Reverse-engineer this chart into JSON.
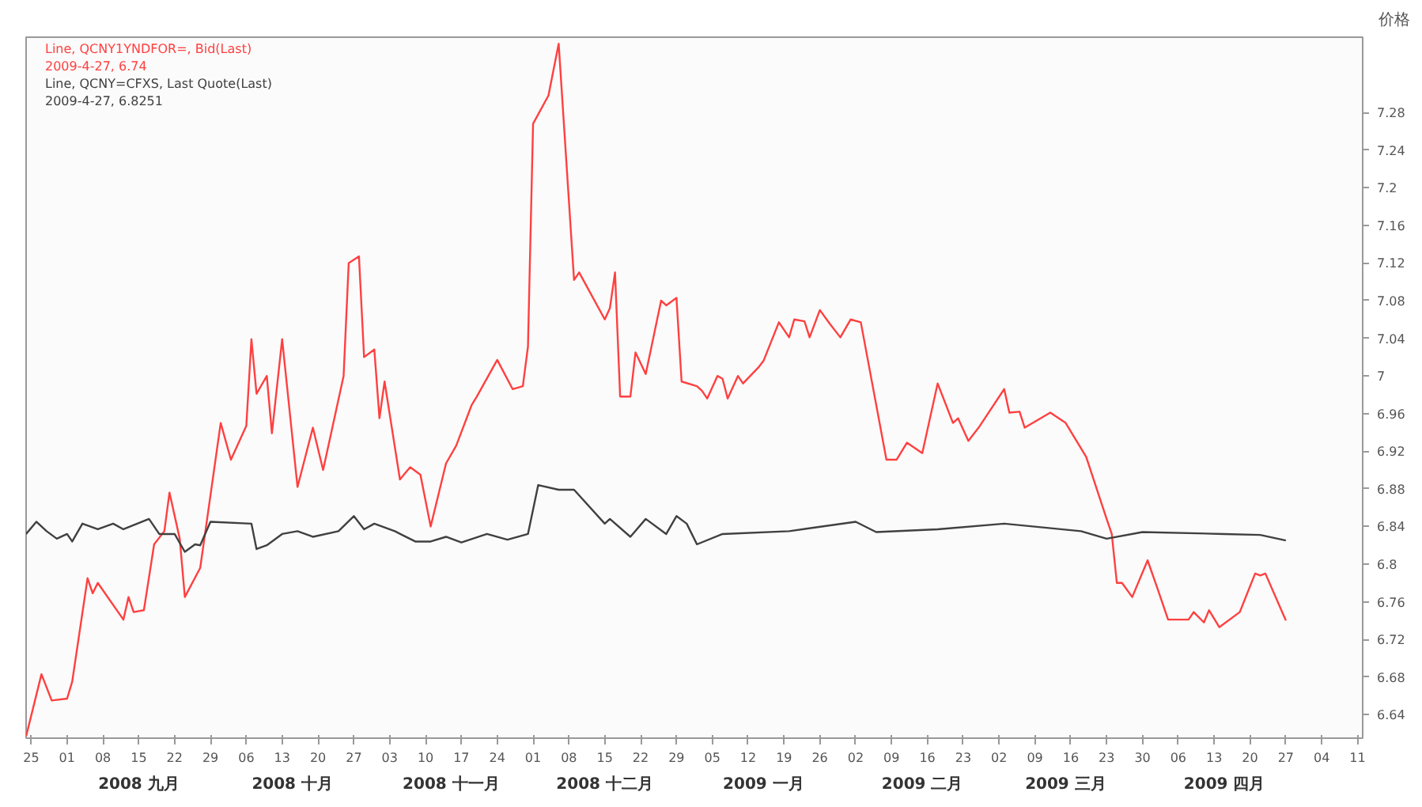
{
  "chart_data": {
    "type": "line",
    "ylabel": "价格",
    "marker": "none",
    "line_style": "solid",
    "grid": false,
    "xlim": [
      "2008-08-24",
      "2009-05-12"
    ],
    "ylim": [
      6.615,
      7.36
    ],
    "yticks": [
      6.64,
      6.68,
      6.72,
      6.76,
      6.8,
      6.84,
      6.88,
      6.92,
      6.96,
      7,
      7.04,
      7.08,
      7.12,
      7.16,
      7.2,
      7.24,
      7.28
    ],
    "xticks": [
      {
        "value": "2008-08-25",
        "label": "25"
      },
      {
        "value": "2008-09-01",
        "label": "01"
      },
      {
        "value": "2008-09-08",
        "label": "08"
      },
      {
        "value": "2008-09-15",
        "label": "15"
      },
      {
        "value": "2008-09-22",
        "label": "22"
      },
      {
        "value": "2008-09-29",
        "label": "29"
      },
      {
        "value": "2008-10-06",
        "label": "06"
      },
      {
        "value": "2008-10-13",
        "label": "13"
      },
      {
        "value": "2008-10-20",
        "label": "20"
      },
      {
        "value": "2008-10-27",
        "label": "27"
      },
      {
        "value": "2008-11-03",
        "label": "03"
      },
      {
        "value": "2008-11-10",
        "label": "10"
      },
      {
        "value": "2008-11-17",
        "label": "17"
      },
      {
        "value": "2008-11-24",
        "label": "24"
      },
      {
        "value": "2008-12-01",
        "label": "01"
      },
      {
        "value": "2008-12-08",
        "label": "08"
      },
      {
        "value": "2008-12-15",
        "label": "15"
      },
      {
        "value": "2008-12-22",
        "label": "22"
      },
      {
        "value": "2008-12-29",
        "label": "29"
      },
      {
        "value": "2009-01-05",
        "label": "05"
      },
      {
        "value": "2009-01-12",
        "label": "12"
      },
      {
        "value": "2009-01-19",
        "label": "19"
      },
      {
        "value": "2009-01-26",
        "label": "26"
      },
      {
        "value": "2009-02-02",
        "label": "02"
      },
      {
        "value": "2009-02-09",
        "label": "09"
      },
      {
        "value": "2009-02-16",
        "label": "16"
      },
      {
        "value": "2009-02-23",
        "label": "23"
      },
      {
        "value": "2009-03-02",
        "label": "02"
      },
      {
        "value": "2009-03-09",
        "label": "09"
      },
      {
        "value": "2009-03-16",
        "label": "16"
      },
      {
        "value": "2009-03-23",
        "label": "23"
      },
      {
        "value": "2009-03-30",
        "label": "30"
      },
      {
        "value": "2009-04-06",
        "label": "06"
      },
      {
        "value": "2009-04-13",
        "label": "13"
      },
      {
        "value": "2009-04-20",
        "label": "20"
      },
      {
        "value": "2009-04-27",
        "label": "27"
      },
      {
        "value": "2009-05-04",
        "label": "04"
      },
      {
        "value": "2009-05-11",
        "label": "11"
      }
    ],
    "series": [
      {
        "name": "Line, QCNY1YNDFOR=, Bid(Last)",
        "color": "#ff4040",
        "x": [
          "2008-08-24",
          "2008-08-27",
          "2008-08-29",
          "2008-09-01",
          "2008-09-02",
          "2008-09-05",
          "2008-09-06",
          "2008-09-07",
          "2008-09-12",
          "2008-09-13",
          "2008-09-14",
          "2008-09-16",
          "2008-09-18",
          "2008-09-20",
          "2008-09-21",
          "2008-09-23",
          "2008-09-24",
          "2008-09-27",
          "2008-10-01",
          "2008-10-03",
          "2008-10-06",
          "2008-10-07",
          "2008-10-08",
          "2008-10-10",
          "2008-10-11",
          "2008-10-13",
          "2008-10-16",
          "2008-10-19",
          "2008-10-21",
          "2008-10-25",
          "2008-10-26",
          "2008-10-28",
          "2008-10-29",
          "2008-10-31",
          "2008-11-01",
          "2008-11-02",
          "2008-11-05",
          "2008-11-07",
          "2008-11-09",
          "2008-11-11",
          "2008-11-14",
          "2008-11-16",
          "2008-11-19",
          "2008-11-20",
          "2008-11-24",
          "2008-11-27",
          "2008-11-29",
          "2008-11-30",
          "2008-12-01",
          "2008-12-04",
          "2008-12-06",
          "2008-12-09",
          "2008-12-10",
          "2008-12-15",
          "2008-12-16",
          "2008-12-17",
          "2008-12-18",
          "2008-12-20",
          "2008-12-21",
          "2008-12-23",
          "2008-12-26",
          "2008-12-27",
          "2008-12-29",
          "2008-12-30",
          "2009-01-02",
          "2009-01-03",
          "2009-01-04",
          "2009-01-06",
          "2009-01-07",
          "2009-01-08",
          "2009-01-10",
          "2009-01-11",
          "2009-01-14",
          "2009-01-15",
          "2009-01-18",
          "2009-01-20",
          "2009-01-21",
          "2009-01-23",
          "2009-01-24",
          "2009-01-26",
          "2009-01-28",
          "2009-01-30",
          "2009-02-01",
          "2009-02-03",
          "2009-02-08",
          "2009-02-10",
          "2009-02-12",
          "2009-02-15",
          "2009-02-18",
          "2009-02-21",
          "2009-02-22",
          "2009-02-24",
          "2009-02-26",
          "2009-03-03",
          "2009-03-04",
          "2009-03-06",
          "2009-03-07",
          "2009-03-12",
          "2009-03-15",
          "2009-03-19",
          "2009-03-23",
          "2009-03-24",
          "2009-03-25",
          "2009-03-26",
          "2009-03-28",
          "2009-03-31",
          "2009-04-02",
          "2009-04-04",
          "2009-04-08",
          "2009-04-09",
          "2009-04-11",
          "2009-04-12",
          "2009-04-14",
          "2009-04-18",
          "2009-04-21",
          "2009-04-22",
          "2009-04-23",
          "2009-04-27"
        ],
        "values": [
          6.617,
          6.683,
          6.655,
          6.657,
          6.675,
          6.785,
          6.769,
          6.78,
          6.741,
          6.765,
          6.749,
          6.751,
          6.821,
          6.835,
          6.876,
          6.827,
          6.765,
          6.796,
          6.95,
          6.911,
          6.947,
          7.039,
          6.981,
          7.0,
          6.939,
          7.039,
          6.882,
          6.945,
          6.9,
          7.0,
          7.12,
          7.127,
          7.02,
          7.028,
          6.955,
          6.994,
          6.89,
          6.903,
          6.895,
          6.84,
          6.907,
          6.926,
          6.969,
          6.978,
          7.017,
          6.986,
          6.989,
          7.031,
          7.268,
          7.298,
          7.353,
          7.102,
          7.11,
          7.06,
          7.072,
          7.11,
          6.978,
          6.978,
          7.025,
          7.002,
          7.08,
          7.075,
          7.083,
          6.994,
          6.989,
          6.984,
          6.976,
          7.0,
          6.997,
          6.976,
          7.0,
          6.992,
          7.009,
          7.016,
          7.057,
          7.041,
          7.06,
          7.058,
          7.041,
          7.07,
          7.055,
          7.041,
          7.06,
          7.057,
          6.911,
          6.911,
          6.929,
          6.918,
          6.992,
          6.95,
          6.955,
          6.931,
          6.945,
          6.986,
          6.961,
          6.962,
          6.945,
          6.961,
          6.95,
          6.914,
          6.848,
          6.832,
          6.78,
          6.78,
          6.765,
          6.804,
          6.773,
          6.741,
          6.741,
          6.749,
          6.738,
          6.751,
          6.733,
          6.749,
          6.79,
          6.788,
          6.79,
          6.74
        ]
      },
      {
        "name": "Line, QCNY=CFXS, Last Quote(Last)",
        "color": "#404040",
        "x": [
          "2008-08-24",
          "2008-08-26",
          "2008-08-28",
          "2008-08-30",
          "2008-09-01",
          "2008-09-02",
          "2008-09-04",
          "2008-09-07",
          "2008-09-10",
          "2008-09-12",
          "2008-09-17",
          "2008-09-19",
          "2008-09-22",
          "2008-09-24",
          "2008-09-26",
          "2008-09-27",
          "2008-09-29",
          "2008-10-07",
          "2008-10-08",
          "2008-10-10",
          "2008-10-13",
          "2008-10-16",
          "2008-10-19",
          "2008-10-24",
          "2008-10-27",
          "2008-10-29",
          "2008-10-31",
          "2008-11-04",
          "2008-11-08",
          "2008-11-11",
          "2008-11-14",
          "2008-11-17",
          "2008-11-22",
          "2008-11-26",
          "2008-11-30",
          "2008-12-02",
          "2008-12-06",
          "2008-12-09",
          "2008-12-15",
          "2008-12-16",
          "2008-12-20",
          "2008-12-23",
          "2008-12-27",
          "2008-12-29",
          "2008-12-31",
          "2009-01-02",
          "2009-01-07",
          "2009-01-20",
          "2009-02-02",
          "2009-02-06",
          "2009-02-18",
          "2009-03-03",
          "2009-03-18",
          "2009-03-23",
          "2009-03-30",
          "2009-04-15",
          "2009-04-22",
          "2009-04-27"
        ],
        "values": [
          6.832,
          6.845,
          6.835,
          6.827,
          6.832,
          6.824,
          6.843,
          6.837,
          6.843,
          6.837,
          6.848,
          6.832,
          6.832,
          6.813,
          6.821,
          6.82,
          6.845,
          6.843,
          6.816,
          6.82,
          6.832,
          6.835,
          6.829,
          6.835,
          6.851,
          6.837,
          6.843,
          6.835,
          6.824,
          6.824,
          6.829,
          6.823,
          6.832,
          6.826,
          6.832,
          6.884,
          6.879,
          6.879,
          6.843,
          6.848,
          6.829,
          6.848,
          6.832,
          6.851,
          6.843,
          6.821,
          6.832,
          6.835,
          6.845,
          6.834,
          6.837,
          6.843,
          6.835,
          6.827,
          6.834,
          6.832,
          6.831,
          6.8251
        ]
      }
    ],
    "annotations": [
      "2009-4-27, 6.74",
      "2009-4-27, 6.8251",
      "2008 九月",
      "2008 十月",
      "2008 十一月",
      "2008 十二月",
      "2009 一月",
      "2009 二月",
      "2009 三月",
      "2009 四月"
    ]
  }
}
